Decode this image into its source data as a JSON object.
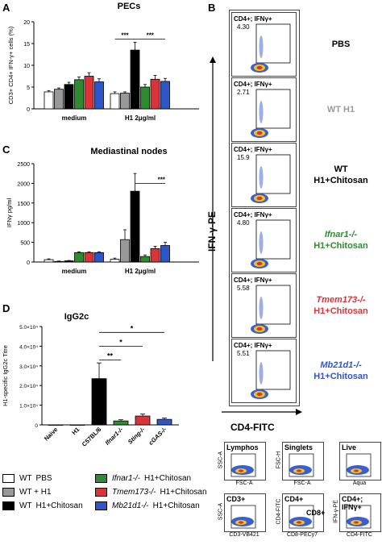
{
  "panels": {
    "A": {
      "letter": "A",
      "title": "PECs"
    },
    "B": {
      "letter": "B"
    },
    "C": {
      "letter": "C",
      "title": "Mediastinal nodes"
    },
    "D": {
      "letter": "D",
      "title": "IgG2c"
    }
  },
  "colors": {
    "white": "#ffffff",
    "grey": "#999999",
    "black": "#000000",
    "green": "#2e8b2e",
    "red": "#d9343a",
    "blue": "#2f56c8"
  },
  "chart_data": [
    {
      "id": "A",
      "type": "bar",
      "title": "PECs",
      "ylabel": "CD3+ CD4+ IFN-γ+ cells (%)",
      "ylim": [
        0,
        20
      ],
      "yticks": [
        "0",
        "5",
        "10",
        "15",
        "20"
      ],
      "groups": [
        "medium",
        "H1 2μg/ml"
      ],
      "series_colors": [
        "#ffffff",
        "#999999",
        "#000000",
        "#2e8b2e",
        "#d9343a",
        "#2f56c8"
      ],
      "values": [
        [
          3.9,
          4.5,
          5.6,
          6.7,
          7.5,
          6.2
        ],
        [
          3.5,
          3.6,
          13.5,
          5.0,
          6.8,
          6.3
        ]
      ],
      "errors": [
        [
          0.3,
          0.3,
          0.5,
          0.6,
          0.8,
          0.7
        ],
        [
          0.4,
          0.3,
          1.8,
          0.6,
          0.9,
          0.7
        ]
      ],
      "significance": [
        {
          "label": "***",
          "from": 2,
          "to": 0
        },
        {
          "label": "***",
          "from": 2,
          "to": 5
        }
      ]
    },
    {
      "id": "C",
      "type": "bar",
      "title": "Mediastinal nodes",
      "ylabel": "IFNγ pg/ml",
      "ylim": [
        0,
        2500
      ],
      "yticks": [
        "0",
        "500",
        "1000",
        "1500",
        "2000",
        "2500"
      ],
      "groups": [
        "medium",
        "H1 2μg/ml"
      ],
      "series_colors": [
        "#ffffff",
        "#999999",
        "#000000",
        "#2e8b2e",
        "#d9343a",
        "#2f56c8"
      ],
      "values": [
        [
          60,
          15,
          30,
          240,
          240,
          240
        ],
        [
          70,
          570,
          1800,
          140,
          340,
          420
        ]
      ],
      "errors": [
        [
          20,
          10,
          10,
          20,
          20,
          20
        ],
        [
          30,
          250,
          450,
          40,
          60,
          80
        ]
      ],
      "significance": [
        {
          "label": "***",
          "from": 2,
          "to": 5
        }
      ]
    },
    {
      "id": "D",
      "type": "bar",
      "title": "IgG2c",
      "ylabel": "H1-specific IgG2c Titre",
      "ylim": [
        0,
        50000
      ],
      "yticks": [
        "0",
        "1.0×10⁴",
        "2.0×10⁴",
        "3.0×10⁴",
        "4.0×10⁴",
        "5.0×10⁴"
      ],
      "categories": [
        "Naive",
        "H1",
        "C57BL/6",
        "Ifnar1-/-",
        "Sting-/-",
        "cGAS-/-"
      ],
      "bar_colors": [
        "#ffffff",
        "#999999",
        "#000000",
        "#2e8b2e",
        "#d9343a",
        "#2f56c8"
      ],
      "values": [
        0,
        0,
        23500,
        2000,
        4500,
        2800
      ],
      "errors": [
        0,
        0,
        8000,
        600,
        1000,
        700
      ],
      "significance": [
        {
          "label": "**",
          "from": 2,
          "to": 3
        },
        {
          "label": "*",
          "from": 2,
          "to": 4
        },
        {
          "label": "*",
          "from": 2,
          "to": 5
        }
      ]
    }
  ],
  "flow": {
    "yaxis": "IFN-γ-PE",
    "xaxis": "CD4-FITC",
    "gate_label": "CD4+; IFNγ+",
    "rows": [
      {
        "value": "4.30",
        "label_line1": "PBS",
        "label_line2": "",
        "color": "#000000"
      },
      {
        "value": "2.71",
        "label_line1": "WT H1",
        "label_line2": "",
        "color": "#999999"
      },
      {
        "value": "15.9",
        "label_line1": "WT",
        "label_line2": "H1+Chitosan",
        "color": "#000000"
      },
      {
        "value": "4.80",
        "label_line1": "Ifnar1-/-",
        "label_line2": "H1+Chitosan",
        "color": "#2e8b2e"
      },
      {
        "value": "5.58",
        "label_line1": "Tmem173-/-",
        "label_line2": "H1+Chitosan",
        "color": "#d9343a"
      },
      {
        "value": "5.51",
        "label_line1": "Mb21d1-/-",
        "label_line2": "H1+Chitosan",
        "color": "#2f56c8"
      }
    ]
  },
  "gating": [
    {
      "title": "Lymphos",
      "x": "FSC-A",
      "y": "SSC-A"
    },
    {
      "title": "Singlets",
      "x": "FSC-A",
      "y": "FSC-H"
    },
    {
      "title": "Live",
      "x": "Aqua",
      "y": ""
    },
    {
      "title": "CD3+",
      "x": "CD3-VB421",
      "y": "SSC-A"
    },
    {
      "title": "CD4+",
      "x": "CD8-PECy7",
      "y": "CD4-FITC"
    },
    {
      "title": "CD8+",
      "x": "",
      "y": ""
    },
    {
      "title": "CD4+; IFNγ+",
      "x": "CD4-FITC",
      "y": "IFN-γ-PE"
    }
  ],
  "legend": [
    {
      "prefix": "WT",
      "italic": "",
      "suffix": "PBS",
      "color": "#ffffff"
    },
    {
      "prefix": "WT + H1",
      "italic": "",
      "suffix": "",
      "color": "#999999"
    },
    {
      "prefix": "WT",
      "italic": "",
      "suffix": "H1+Chitosan",
      "color": "#000000"
    },
    {
      "prefix": "",
      "italic": "Ifnar1-/-",
      "suffix": "H1+Chitosan",
      "color": "#2e8b2e"
    },
    {
      "prefix": "",
      "italic": "Tmem173-/-",
      "suffix": "H1+Chitosan",
      "color": "#d9343a"
    },
    {
      "prefix": "",
      "italic": "Mb21d1-/-",
      "suffix": "H1+Chitosan",
      "color": "#2f56c8"
    }
  ]
}
